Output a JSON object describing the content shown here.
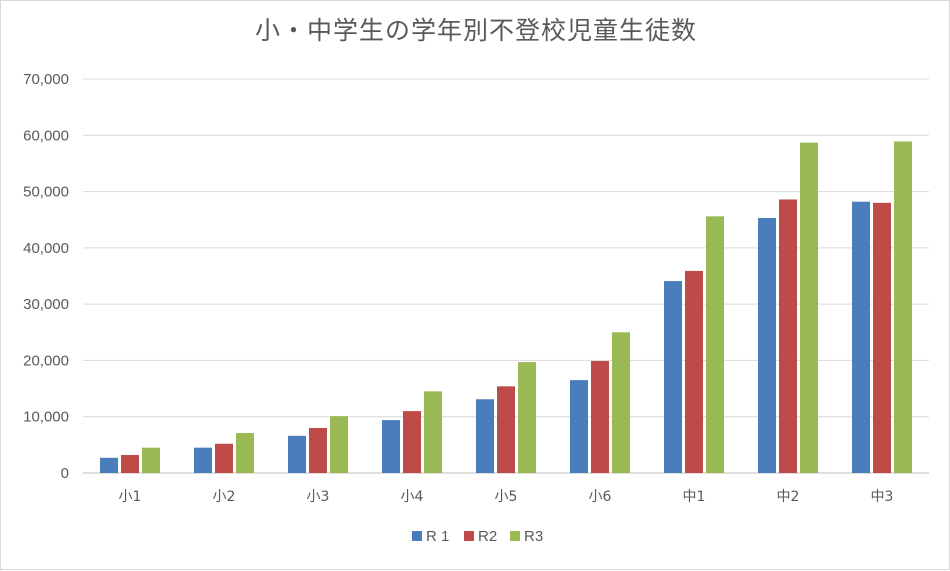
{
  "chart_data": {
    "type": "bar",
    "title": "小・中学生の学年別不登校児童生徒数",
    "categories": [
      "小1",
      "小2",
      "小3",
      "小4",
      "小5",
      "小6",
      "中1",
      "中2",
      "中3"
    ],
    "series": [
      {
        "name": "R 1",
        "color": "#4a7ebb",
        "values": [
          2700,
          4500,
          6600,
          9400,
          13100,
          16500,
          34100,
          45300,
          48200
        ]
      },
      {
        "name": "R2",
        "color": "#be4b48",
        "values": [
          3200,
          5200,
          8000,
          11000,
          15400,
          19900,
          35900,
          48600,
          48000
        ]
      },
      {
        "name": "R3",
        "color": "#98b954",
        "values": [
          4500,
          7100,
          10100,
          14500,
          19700,
          25000,
          45600,
          58700,
          58900
        ]
      }
    ],
    "ylim": [
      0,
      70000
    ],
    "yticks": [
      "0",
      "10,000",
      "20,000",
      "30,000",
      "40,000",
      "50,000",
      "60,000",
      "70,000"
    ],
    "grid": true,
    "legend_position": "bottom"
  }
}
